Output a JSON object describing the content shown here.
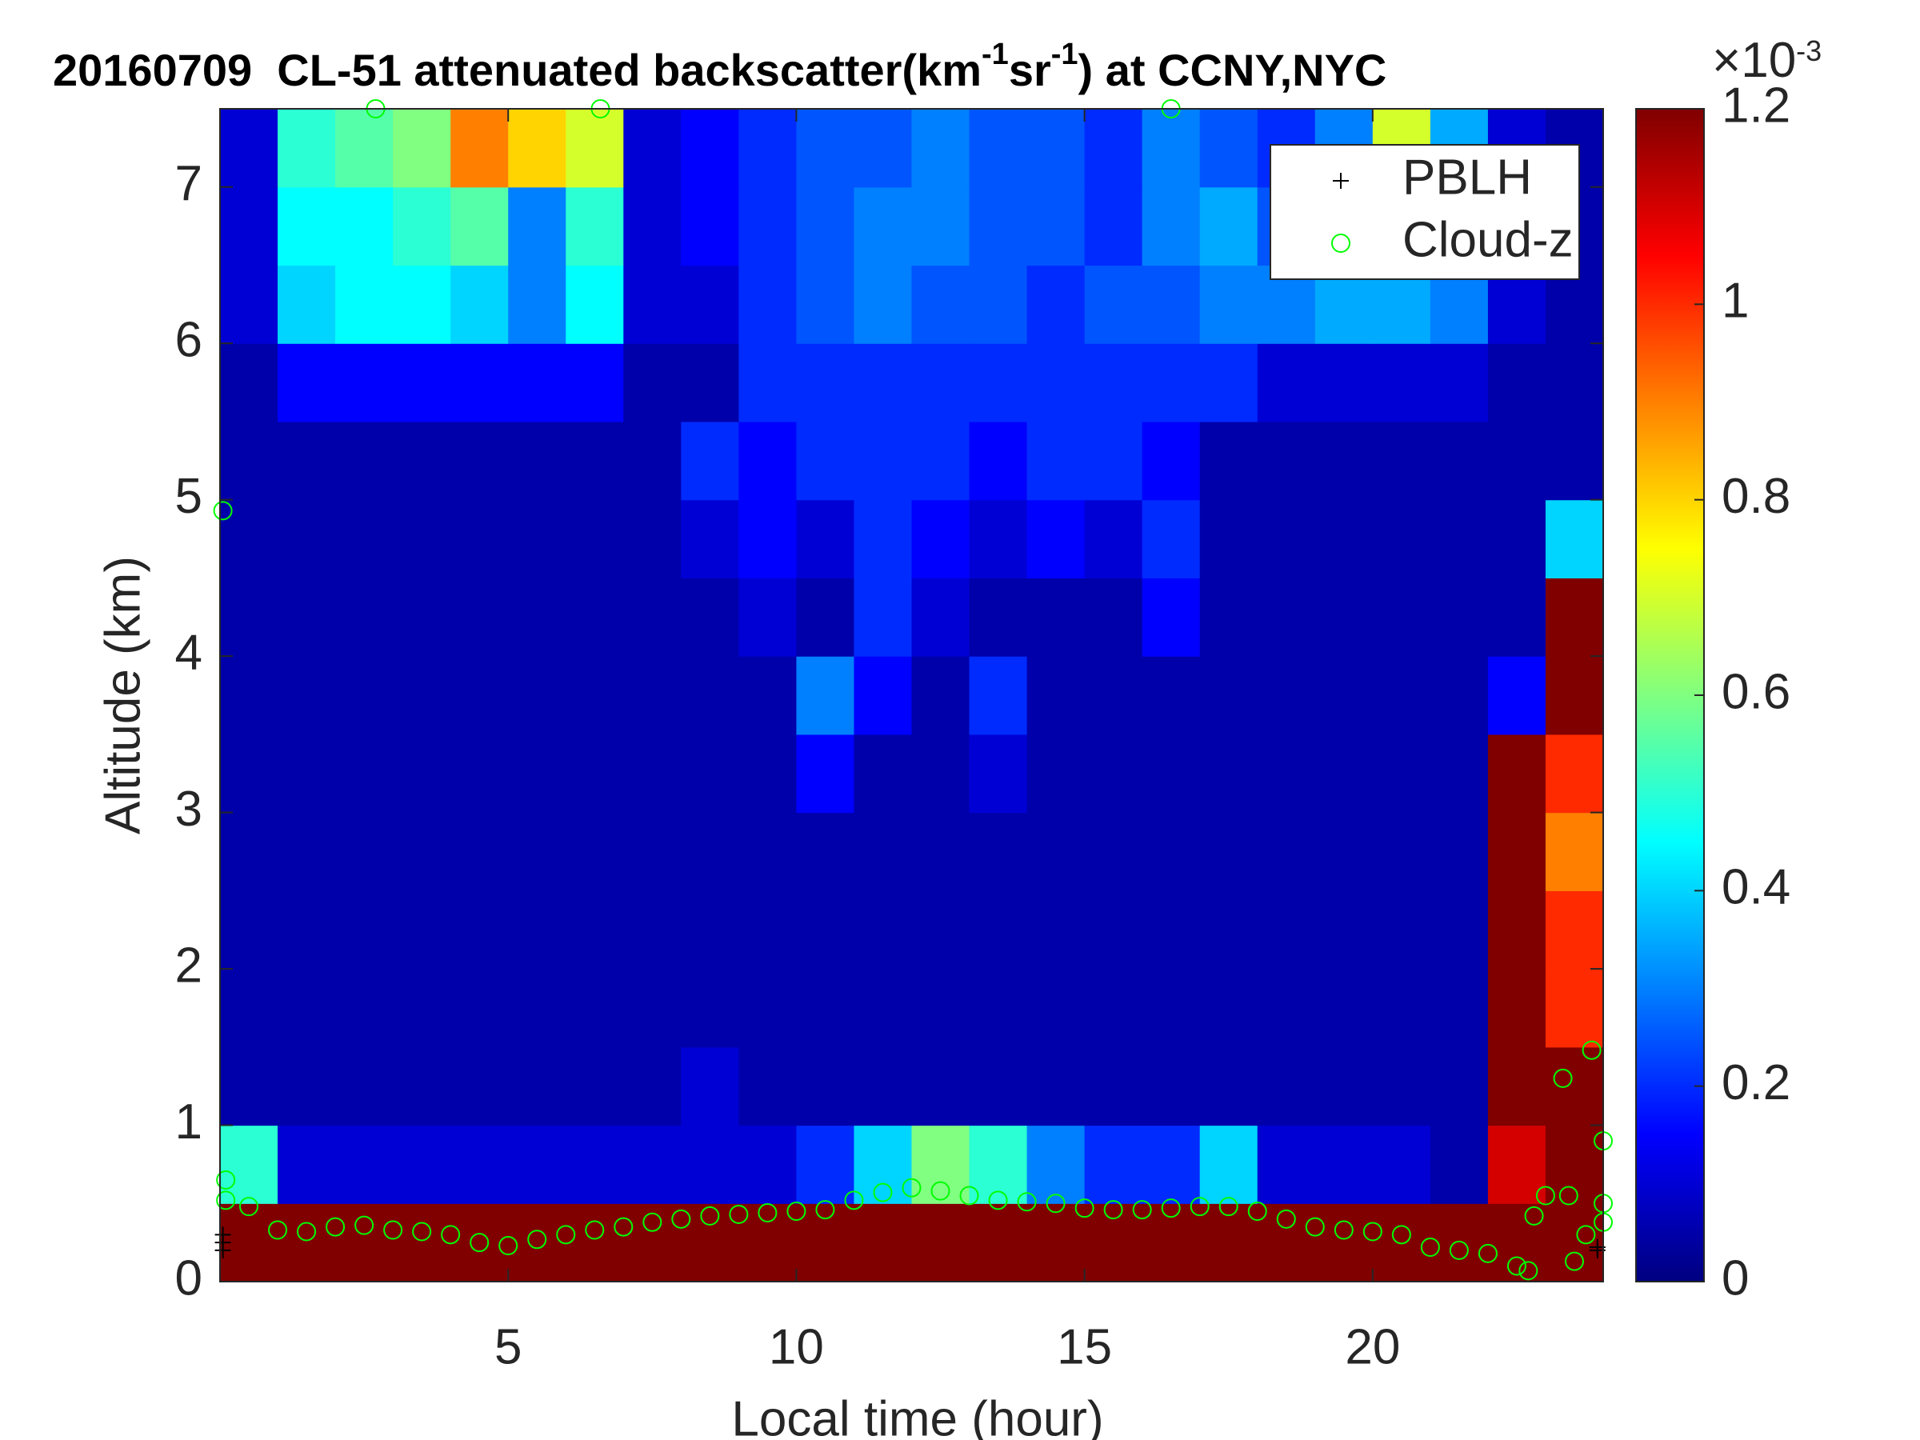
{
  "chart_data": {
    "type": "heatmap",
    "title": [
      "20160709  CL-51 attenuated backscatter(km",
      "-1",
      "sr",
      "-1",
      ") at CCNY,NYC"
    ],
    "xlabel": "Local time (hour)",
    "ylabel": "Altitude (km)",
    "xlim": [
      0,
      24
    ],
    "xticks": [
      5,
      10,
      15,
      20
    ],
    "ylim": [
      0,
      7.5
    ],
    "yticks": [
      0,
      1,
      2,
      3,
      4,
      5,
      6,
      7
    ],
    "colormap": "jet",
    "clim": [
      0,
      1.2
    ],
    "cticks": [
      0,
      0.2,
      0.4,
      0.6,
      0.8,
      1,
      1.2
    ],
    "cscale": [
      "×10",
      "-3"
    ],
    "xedges": [
      0,
      1,
      2,
      3,
      4,
      5,
      6,
      7,
      8,
      9,
      10,
      11,
      12,
      13,
      14,
      15,
      16,
      17,
      18,
      19,
      20,
      21,
      22,
      23,
      24
    ],
    "yedges": [
      0,
      0.5,
      1,
      1.5,
      2,
      2.5,
      3,
      3.5,
      4,
      4.5,
      5,
      5.5,
      6,
      6.5,
      7,
      7.5
    ],
    "z": [
      [
        1.2,
        1.2,
        1.2,
        1.2,
        1.2,
        1.2,
        1.2,
        1.2,
        1.2,
        1.2,
        1.2,
        1.2,
        1.2,
        1.2,
        1.2,
        1.2,
        1.2,
        1.2,
        1.2,
        1.2,
        1.2,
        1.2,
        1.2,
        1.2
      ],
      [
        0.5,
        0.1,
        0.1,
        0.1,
        0.1,
        0.1,
        0.1,
        0.1,
        0.1,
        0.1,
        0.2,
        0.4,
        0.6,
        0.5,
        0.3,
        0.2,
        0.2,
        0.4,
        0.1,
        0.1,
        0.1,
        0.05,
        1.1,
        1.2
      ],
      [
        0.05,
        0.05,
        0.05,
        0.05,
        0.05,
        0.05,
        0.05,
        0.05,
        0.1,
        0.05,
        0.05,
        0.05,
        0.05,
        0.05,
        0.05,
        0.05,
        0.05,
        0.05,
        0.05,
        0.05,
        0.05,
        0.05,
        1.2,
        1.2
      ],
      [
        0.05,
        0.05,
        0.05,
        0.05,
        0.05,
        0.05,
        0.05,
        0.05,
        0.05,
        0.05,
        0.05,
        0.05,
        0.05,
        0.05,
        0.05,
        0.05,
        0.05,
        0.05,
        0.05,
        0.05,
        0.05,
        0.05,
        1.2,
        1
      ],
      [
        0.05,
        0.05,
        0.05,
        0.05,
        0.05,
        0.05,
        0.05,
        0.05,
        0.05,
        0.05,
        0.05,
        0.05,
        0.05,
        0.05,
        0.05,
        0.05,
        0.05,
        0.05,
        0.05,
        0.05,
        0.05,
        0.05,
        1.2,
        1
      ],
      [
        0.05,
        0.05,
        0.05,
        0.05,
        0.05,
        0.05,
        0.05,
        0.05,
        0.05,
        0.05,
        0.05,
        0.05,
        0.05,
        0.05,
        0.05,
        0.05,
        0.05,
        0.05,
        0.05,
        0.05,
        0.05,
        0.05,
        1.2,
        0.9
      ],
      [
        0.05,
        0.05,
        0.05,
        0.05,
        0.05,
        0.05,
        0.05,
        0.05,
        0.05,
        0.05,
        0.15,
        0.05,
        0.05,
        0.1,
        0.05,
        0.05,
        0.05,
        0.05,
        0.05,
        0.05,
        0.05,
        0.05,
        1.2,
        1
      ],
      [
        0.05,
        0.05,
        0.05,
        0.05,
        0.05,
        0.05,
        0.05,
        0.05,
        0.05,
        0.05,
        0.3,
        0.15,
        0.05,
        0.2,
        0.05,
        0.05,
        0.05,
        0.05,
        0.05,
        0.05,
        0.05,
        0.05,
        0.15,
        1.2
      ],
      [
        0.05,
        0.05,
        0.05,
        0.05,
        0.05,
        0.05,
        0.05,
        0.05,
        0.05,
        0.1,
        0.05,
        0.2,
        0.1,
        0.05,
        0.05,
        0.05,
        0.15,
        0.05,
        0.05,
        0.05,
        0.05,
        0.05,
        0.05,
        1.2
      ],
      [
        0.05,
        0.05,
        0.05,
        0.05,
        0.05,
        0.05,
        0.05,
        0.05,
        0.1,
        0.15,
        0.1,
        0.2,
        0.15,
        0.1,
        0.15,
        0.1,
        0.2,
        0.05,
        0.05,
        0.05,
        0.05,
        0.05,
        0.05,
        0.4
      ],
      [
        0.05,
        0.05,
        0.05,
        0.05,
        0.05,
        0.05,
        0.05,
        0.05,
        0.2,
        0.15,
        0.2,
        0.2,
        0.2,
        0.15,
        0.2,
        0.2,
        0.15,
        0.05,
        0.05,
        0.05,
        0.05,
        0.05,
        0.05,
        0.05
      ],
      [
        0.05,
        0.15,
        0.15,
        0.15,
        0.15,
        0.15,
        0.15,
        0.05,
        0.05,
        0.2,
        0.2,
        0.2,
        0.2,
        0.2,
        0.2,
        0.2,
        0.2,
        0.2,
        0.1,
        0.1,
        0.1,
        0.1,
        0.05,
        0.05
      ],
      [
        0.1,
        0.4,
        0.45,
        0.45,
        0.4,
        0.3,
        0.45,
        0.1,
        0.1,
        0.2,
        0.25,
        0.3,
        0.25,
        0.25,
        0.2,
        0.25,
        0.25,
        0.3,
        0.3,
        0.35,
        0.35,
        0.3,
        0.1,
        0.05
      ],
      [
        0.1,
        0.45,
        0.45,
        0.5,
        0.55,
        0.3,
        0.5,
        0.1,
        0.15,
        0.2,
        0.25,
        0.3,
        0.3,
        0.25,
        0.25,
        0.2,
        0.3,
        0.35,
        0.25,
        0.3,
        0.3,
        0.3,
        0.1,
        0.05
      ],
      [
        0.1,
        0.5,
        0.55,
        0.6,
        0.9,
        0.8,
        0.7,
        0.1,
        0.15,
        0.2,
        0.25,
        0.25,
        0.3,
        0.25,
        0.25,
        0.2,
        0.3,
        0.25,
        0.2,
        0.3,
        0.7,
        0.35,
        0.1,
        0.05
      ]
    ],
    "series": [
      {
        "name": "PBLH",
        "marker": "+",
        "color": "#000000",
        "x": [
          0.05,
          0.05,
          0.05,
          23.9,
          23.9
        ],
        "y": [
          0.2,
          0.25,
          0.3,
          0.2,
          0.22
        ]
      },
      {
        "name": "Cloud-z",
        "marker": "o",
        "color": "#00ff00",
        "x": [
          0.1,
          0.5,
          1,
          1.5,
          2,
          2.5,
          3,
          3.5,
          4,
          4.5,
          5,
          5.5,
          6,
          6.5,
          7,
          7.5,
          8,
          8.5,
          9,
          9.5,
          10,
          10.5,
          11,
          11.5,
          12,
          12.5,
          13,
          13.5,
          14,
          14.5,
          15,
          15.5,
          16,
          16.5,
          17,
          17.5,
          18,
          18.5,
          19,
          19.5,
          20,
          20.5,
          21,
          21.5,
          22,
          22.5,
          22.7,
          22.8,
          23,
          23.3,
          23.4,
          23.5,
          23.7,
          23.8,
          24,
          24,
          24,
          0.1,
          0.05,
          2.7,
          6.6,
          16.5
        ],
        "y": [
          0.52,
          0.48,
          0.33,
          0.32,
          0.35,
          0.36,
          0.33,
          0.32,
          0.3,
          0.25,
          0.23,
          0.27,
          0.3,
          0.33,
          0.35,
          0.38,
          0.4,
          0.42,
          0.43,
          0.44,
          0.45,
          0.46,
          0.52,
          0.57,
          0.6,
          0.58,
          0.55,
          0.52,
          0.51,
          0.5,
          0.47,
          0.46,
          0.46,
          0.47,
          0.48,
          0.48,
          0.45,
          0.4,
          0.35,
          0.33,
          0.32,
          0.3,
          0.22,
          0.2,
          0.18,
          0.1,
          0.07,
          0.42,
          0.55,
          1.3,
          0.55,
          0.13,
          0.3,
          1.48,
          0.9,
          0.5,
          0.38,
          0.65,
          4.93,
          7.5,
          7.5,
          7.5
        ]
      }
    ],
    "legend": "upper right"
  }
}
